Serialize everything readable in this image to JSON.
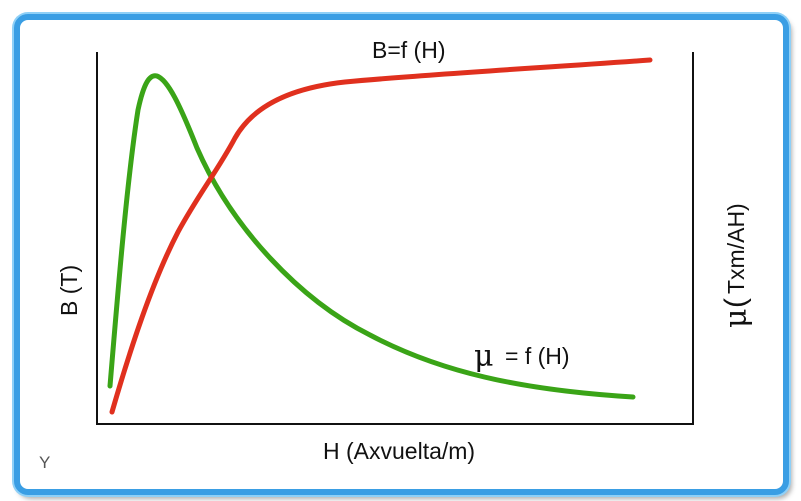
{
  "diagram": {
    "curve_b_label": "B=f (H)",
    "curve_mu_symbol": "μ",
    "curve_mu_label": "= f (H)",
    "x_axis_label": "H (Axvuelta/m)",
    "y_axis_left_label": "B (T)",
    "y_axis_right_symbol": "μ",
    "y_axis_right_label": "Txm/AH)",
    "y_axis_right_open_paren": "(",
    "corner_mark": "Y",
    "colors": {
      "b_curve": "#e0301e",
      "mu_curve": "#3aa417",
      "frame": "#3a9ee4",
      "axes": "#111111"
    }
  }
}
